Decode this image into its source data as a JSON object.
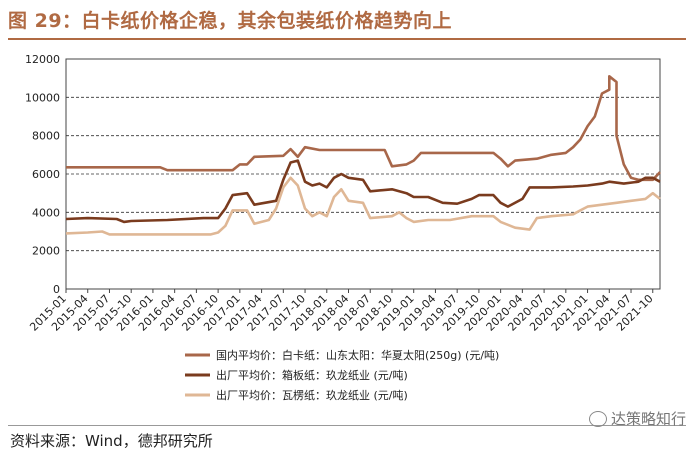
{
  "header": {
    "title": "图 29：白卡纸价格企稳，其余包装纸价格趋势向上"
  },
  "footer": {
    "source": "资料来源：Wind，德邦研究所",
    "watermark": "达策略知行"
  },
  "chart_data": {
    "type": "line",
    "xlabel": "",
    "ylabel": "",
    "ylim": [
      0,
      12000
    ],
    "yticks": [
      0,
      2000,
      4000,
      6000,
      8000,
      10000,
      12000
    ],
    "xlim": [
      "2015-01",
      "2021-11"
    ],
    "xticks": [
      "2015-01",
      "2015-04",
      "2015-07",
      "2015-10",
      "2016-01",
      "2016-04",
      "2016-07",
      "2016-10",
      "2017-01",
      "2017-04",
      "2017-07",
      "2017-10",
      "2018-01",
      "2018-04",
      "2018-07",
      "2018-10",
      "2019-01",
      "2019-04",
      "2019-07",
      "2019-10",
      "2020-01",
      "2020-04",
      "2020-07",
      "2020-10",
      "2021-01",
      "2021-04",
      "2021-07",
      "2021-10"
    ],
    "grid": "horizontal-dashed",
    "legend_position": "bottom",
    "series": [
      {
        "name": "国内平均价：白卡纸：山东太阳：华夏太阳(250g) (元/吨)",
        "color": "#a8674a",
        "points": [
          [
            "2015-01",
            6350
          ],
          [
            "2016-02",
            6350
          ],
          [
            "2016-03",
            6200
          ],
          [
            "2016-12",
            6200
          ],
          [
            "2017-01",
            6500
          ],
          [
            "2017-02",
            6500
          ],
          [
            "2017-03",
            6900
          ],
          [
            "2017-07",
            6950
          ],
          [
            "2017-08",
            7300
          ],
          [
            "2017-09",
            6900
          ],
          [
            "2017-10",
            7400
          ],
          [
            "2017-12",
            7250
          ],
          [
            "2018-09",
            7250
          ],
          [
            "2018-10",
            6400
          ],
          [
            "2018-12",
            6500
          ],
          [
            "2019-01",
            6700
          ],
          [
            "2019-02",
            7100
          ],
          [
            "2019-12",
            7100
          ],
          [
            "2020-01",
            6800
          ],
          [
            "2020-02",
            6400
          ],
          [
            "2020-03",
            6700
          ],
          [
            "2020-06",
            6800
          ],
          [
            "2020-08",
            7000
          ],
          [
            "2020-10",
            7100
          ],
          [
            "2020-11",
            7400
          ],
          [
            "2020-12",
            7800
          ],
          [
            "2021-01",
            8500
          ],
          [
            "2021-02",
            9000
          ],
          [
            "2021-03",
            10200
          ],
          [
            "2021-04",
            10400
          ],
          [
            "2021-04",
            11100
          ],
          [
            "2021-05",
            10800
          ],
          [
            "2021-05",
            8000
          ],
          [
            "2021-06",
            6500
          ],
          [
            "2021-07",
            5800
          ],
          [
            "2021-08",
            5700
          ],
          [
            "2021-10",
            5700
          ],
          [
            "2021-11",
            6100
          ]
        ]
      },
      {
        "name": "出厂平均价：箱板纸：玖龙纸业 (元/吨)",
        "color": "#7a3b1e",
        "points": [
          [
            "2015-01",
            3650
          ],
          [
            "2015-04",
            3700
          ],
          [
            "2015-08",
            3650
          ],
          [
            "2015-09",
            3500
          ],
          [
            "2015-10",
            3550
          ],
          [
            "2016-03",
            3600
          ],
          [
            "2016-08",
            3700
          ],
          [
            "2016-10",
            3700
          ],
          [
            "2016-11",
            4200
          ],
          [
            "2016-12",
            4900
          ],
          [
            "2017-02",
            5000
          ],
          [
            "2017-03",
            4400
          ],
          [
            "2017-06",
            4600
          ],
          [
            "2017-07",
            5700
          ],
          [
            "2017-08",
            6600
          ],
          [
            "2017-09",
            6700
          ],
          [
            "2017-10",
            5600
          ],
          [
            "2017-11",
            5400
          ],
          [
            "2017-12",
            5500
          ],
          [
            "2018-01",
            5300
          ],
          [
            "2018-02",
            5800
          ],
          [
            "2018-03",
            6000
          ],
          [
            "2018-04",
            5800
          ],
          [
            "2018-06",
            5700
          ],
          [
            "2018-07",
            5100
          ],
          [
            "2018-10",
            5200
          ],
          [
            "2018-11",
            5100
          ],
          [
            "2018-12",
            5000
          ],
          [
            "2019-01",
            4800
          ],
          [
            "2019-03",
            4800
          ],
          [
            "2019-05",
            4500
          ],
          [
            "2019-07",
            4450
          ],
          [
            "2019-09",
            4700
          ],
          [
            "2019-10",
            4900
          ],
          [
            "2019-12",
            4900
          ],
          [
            "2020-01",
            4500
          ],
          [
            "2020-02",
            4300
          ],
          [
            "2020-04",
            4700
          ],
          [
            "2020-05",
            5300
          ],
          [
            "2020-08",
            5300
          ],
          [
            "2020-11",
            5350
          ],
          [
            "2021-01",
            5400
          ],
          [
            "2021-03",
            5500
          ],
          [
            "2021-04",
            5600
          ],
          [
            "2021-06",
            5500
          ],
          [
            "2021-08",
            5600
          ],
          [
            "2021-09",
            5800
          ],
          [
            "2021-10",
            5800
          ],
          [
            "2021-11",
            5600
          ]
        ]
      },
      {
        "name": "出厂平均价：瓦楞纸：玖龙纸业 (元/吨)",
        "color": "#dfb795",
        "points": [
          [
            "2015-01",
            2900
          ],
          [
            "2015-04",
            2950
          ],
          [
            "2015-06",
            3000
          ],
          [
            "2015-07",
            2850
          ],
          [
            "2016-03",
            2850
          ],
          [
            "2016-09",
            2850
          ],
          [
            "2016-10",
            2950
          ],
          [
            "2016-11",
            3300
          ],
          [
            "2016-12",
            4100
          ],
          [
            "2017-02",
            4100
          ],
          [
            "2017-03",
            3400
          ],
          [
            "2017-05",
            3600
          ],
          [
            "2017-06",
            4200
          ],
          [
            "2017-07",
            5300
          ],
          [
            "2017-08",
            5800
          ],
          [
            "2017-09",
            5400
          ],
          [
            "2017-10",
            4200
          ],
          [
            "2017-11",
            3800
          ],
          [
            "2017-12",
            4000
          ],
          [
            "2018-01",
            3800
          ],
          [
            "2018-02",
            4800
          ],
          [
            "2018-03",
            5200
          ],
          [
            "2018-04",
            4600
          ],
          [
            "2018-06",
            4500
          ],
          [
            "2018-07",
            3700
          ],
          [
            "2018-10",
            3800
          ],
          [
            "2018-11",
            4000
          ],
          [
            "2018-12",
            3700
          ],
          [
            "2019-01",
            3500
          ],
          [
            "2019-03",
            3600
          ],
          [
            "2019-06",
            3600
          ],
          [
            "2019-09",
            3800
          ],
          [
            "2019-12",
            3800
          ],
          [
            "2020-01",
            3500
          ],
          [
            "2020-03",
            3200
          ],
          [
            "2020-05",
            3100
          ],
          [
            "2020-06",
            3700
          ],
          [
            "2020-08",
            3800
          ],
          [
            "2020-11",
            3900
          ],
          [
            "2020-12",
            4100
          ],
          [
            "2021-01",
            4300
          ],
          [
            "2021-03",
            4400
          ],
          [
            "2021-05",
            4500
          ],
          [
            "2021-07",
            4600
          ],
          [
            "2021-09",
            4700
          ],
          [
            "2021-10",
            5000
          ],
          [
            "2021-11",
            4700
          ]
        ]
      }
    ]
  }
}
